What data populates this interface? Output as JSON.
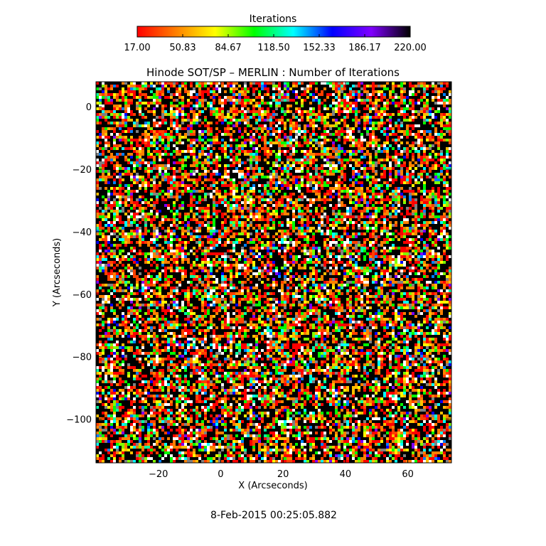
{
  "colorbar": {
    "title": "Iterations",
    "tick_labels": [
      "17.00",
      "50.83",
      "84.67",
      "118.50",
      "152.33",
      "186.17",
      "220.00"
    ],
    "range": [
      17,
      220
    ],
    "colormap": [
      "#ff0000",
      "#ff8000",
      "#ffff00",
      "#00ff00",
      "#00ffff",
      "#0000ff",
      "#8000ff",
      "#000000"
    ]
  },
  "chart_data": {
    "type": "heatmap",
    "title": "Hinode SOT/SP – MERLIN : Number of Iterations",
    "xlabel": "X (Arcseconds)",
    "ylabel": "Y (Arcseconds)",
    "x_ticks": [
      -20,
      0,
      20,
      40,
      60
    ],
    "x_tick_labels": [
      "−20",
      "0",
      "20",
      "40",
      "60"
    ],
    "y_ticks": [
      0,
      -20,
      -40,
      -60,
      -80,
      -100
    ],
    "y_tick_labels": [
      "0",
      "−20",
      "−40",
      "−60",
      "−80",
      "−100"
    ],
    "xlim": [
      -40,
      74
    ],
    "ylim": [
      -114,
      8
    ],
    "value_range": [
      17,
      220
    ],
    "value_distribution": {
      "dominant_values": "black (~220, max iterations) and red/orange (low iterations), speckled noise",
      "minor_values": "yellow, green, cyan, blue, white pixels scattered"
    }
  },
  "timestamp": "8-Feb-2015 00:25:05.882"
}
